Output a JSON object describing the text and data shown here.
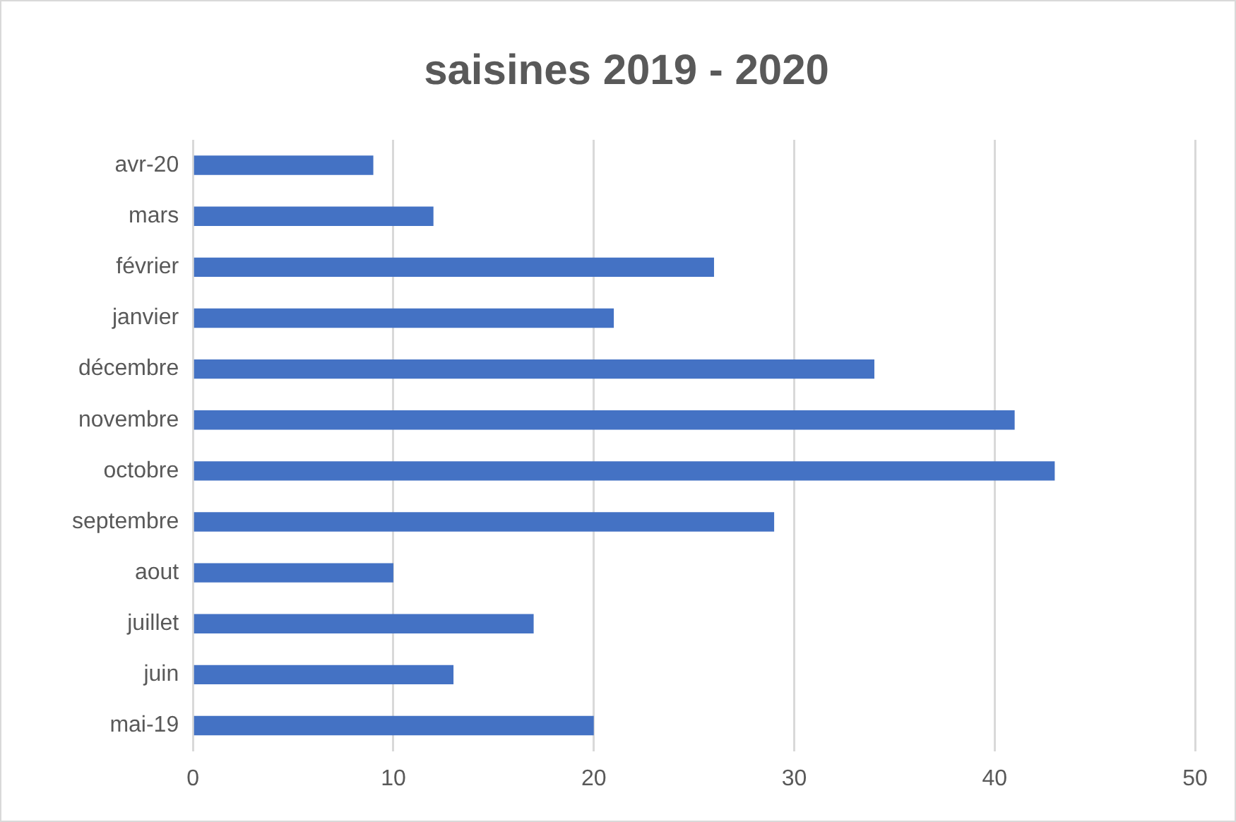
{
  "chart_data": {
    "type": "bar",
    "orientation": "horizontal",
    "title": "saisines 2019 - 2020",
    "categories": [
      "avr-20",
      "mars",
      "février",
      "janvier",
      "décembre",
      "novembre",
      "octobre",
      "septembre",
      "aout",
      "juillet",
      "juin",
      "mai-19"
    ],
    "values": [
      9,
      12,
      26,
      21,
      34,
      41,
      43,
      29,
      10,
      17,
      13,
      20
    ],
    "color": "#4472c4",
    "xlim": [
      0,
      50
    ],
    "xticks": [
      0,
      10,
      20,
      30,
      40,
      50
    ],
    "grid": "x",
    "legend": false
  }
}
